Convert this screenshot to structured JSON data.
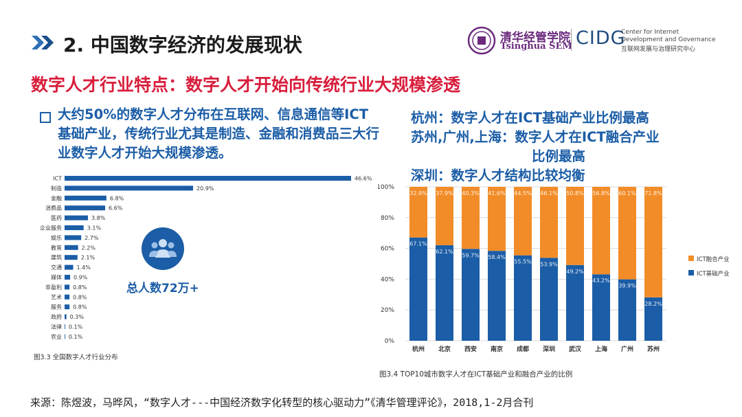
{
  "header": {
    "title": "2. 中国数字经济的发展现状",
    "logo_cn": "清华经管学院",
    "logo_en": "Tsinghua SEM",
    "cidg_mark": "CIDG",
    "cidg_lines": [
      "Center for Internet",
      "Development and Governance",
      "互联网发展与治理研究中心"
    ]
  },
  "subtitle": "数字人才行业特点：数字人才开始向传统行业大规模渗透",
  "bullet": {
    "text": "大约50%的数字人才分布在互联网、信息通信等ICT基础产业，传统行业尤其是制造、金融和消费品三大行业数字人才开始大规模渗透。"
  },
  "right_text": {
    "lines": [
      "杭州：数字人才在ICT基础产业比例最高",
      "苏州,广州,上海：数字人才在ICT融合产业",
      "比例最高",
      "深圳：数字人才结构比较均衡"
    ]
  },
  "total": {
    "label": "总人数72万+"
  },
  "captions": {
    "left": "图3.3 全国数字人才行业分布",
    "right": "图3.4 TOP10城市数字人才在ICT基础产业和融合产业的比例"
  },
  "source": "来源：陈煜波，马晔风，“数字人才---中国经济数字化转型的核心驱动力”《清华管理评论》，2018,1-2月合刊",
  "colors": {
    "blue": "#1b5da6",
    "orange": "#f28c28",
    "red": "#d81e3c",
    "purple": "#6b2a7e"
  },
  "chart_data": [
    {
      "type": "bar",
      "orientation": "horizontal",
      "title": "图3.3 全国数字人才行业分布",
      "categories": [
        "ICT",
        "制造",
        "金融",
        "消费品",
        "医药",
        "企业服务",
        "娱乐",
        "教育",
        "建筑",
        "交通",
        "媒体",
        "非盈利",
        "艺术",
        "服务",
        "政府",
        "法律",
        "农业"
      ],
      "values": [
        46.6,
        20.9,
        6.8,
        6.6,
        3.8,
        3.1,
        2.7,
        2.2,
        2.1,
        1.4,
        0.9,
        0.8,
        0.8,
        0.8,
        0.3,
        0.1,
        0.1
      ],
      "value_labels": [
        "46.6%",
        "20.9%",
        "6.8%",
        "6.6%",
        "3.8%",
        "3.1%",
        "2.7%",
        "2.2%",
        "2.1%",
        "1.4%",
        "0.9%",
        "0.8%",
        "0.8%",
        "0.8%",
        "0.3%",
        "0.1%",
        "0.1%"
      ],
      "xlim": [
        0,
        46.6
      ]
    },
    {
      "type": "bar",
      "stacked": true,
      "title": "图3.4 TOP10城市数字人才在ICT基础产业和融合产业的比例",
      "categories": [
        "杭州",
        "北京",
        "西安",
        "南京",
        "成都",
        "深圳",
        "武汉",
        "上海",
        "广州",
        "苏州"
      ],
      "series": [
        {
          "name": "ICT基础产业",
          "values": [
            67.1,
            62.1,
            59.7,
            58.4,
            55.5,
            53.9,
            49.2,
            43.2,
            39.9,
            28.2
          ],
          "labels": [
            "67.1%",
            "62.1%",
            "59.7%",
            "58.4%",
            "55.5%",
            "53.9%",
            "49.2%",
            "43.2%",
            "39.9%",
            "28.2%"
          ]
        },
        {
          "name": "ICT融合产业",
          "values": [
            32.9,
            37.9,
            40.3,
            41.6,
            44.5,
            46.1,
            50.8,
            56.8,
            60.1,
            71.8
          ],
          "labels": [
            "32.9%",
            "37.9%",
            "40.3%",
            "41.6%",
            "44.5%",
            "46.1%",
            "50.8%",
            "56.8%",
            "60.1%",
            "71.8%"
          ]
        }
      ],
      "legend": [
        "ICT融合产业",
        "ICT基础产业"
      ],
      "y_ticks": [
        "0%",
        "20%",
        "40%",
        "60%",
        "80%",
        "100%"
      ],
      "ylim": [
        0,
        100
      ]
    }
  ]
}
